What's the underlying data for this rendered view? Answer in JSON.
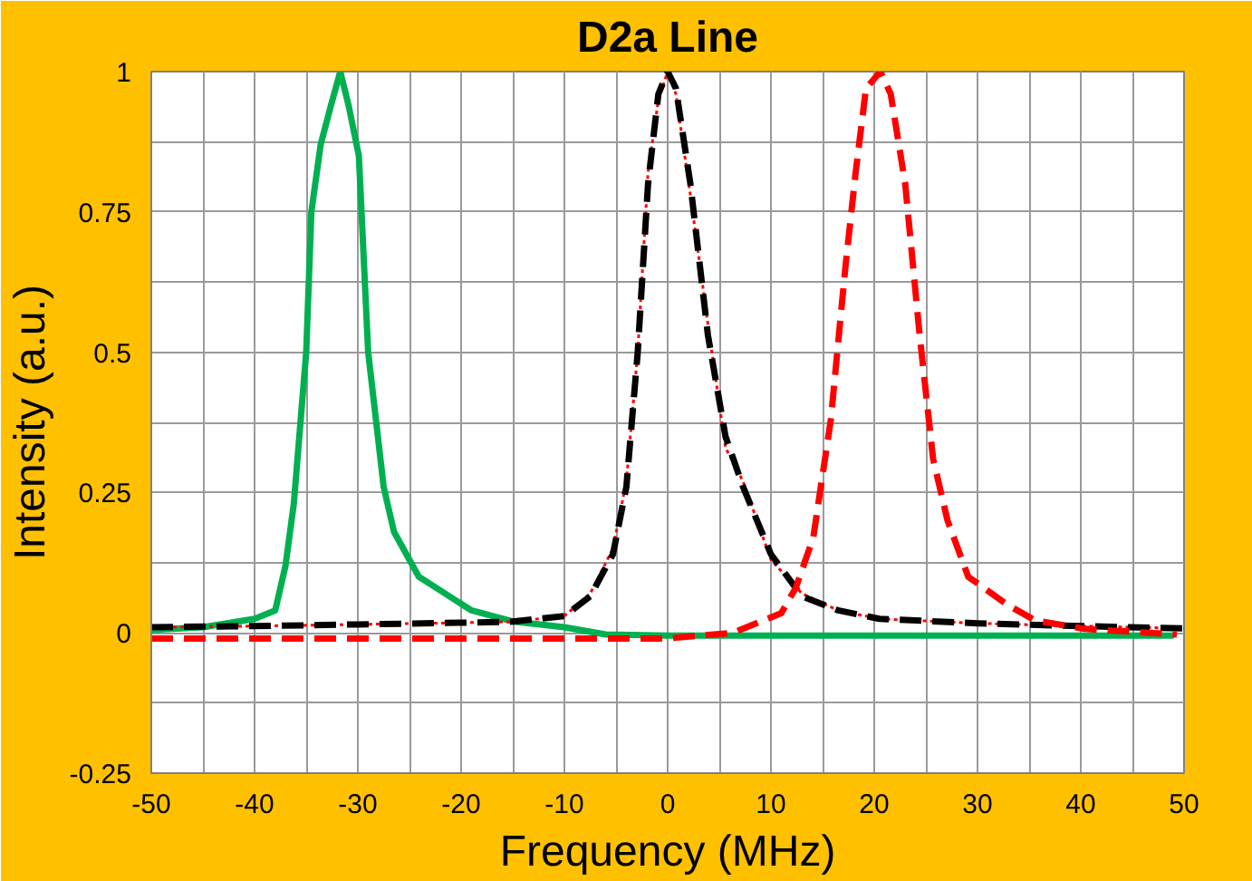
{
  "chart_data": {
    "type": "line",
    "title": "D2a Line",
    "xlabel": "Frequency (MHz)",
    "ylabel": "Intensity (a.u.)",
    "xlim": [
      -50,
      50
    ],
    "ylim": [
      -0.25,
      1
    ],
    "xticks": [
      -50,
      {
        "value": -45,
        "label": null
      },
      -40,
      {
        "value": -35,
        "label": null
      },
      -30,
      {
        "value": -25,
        "label": null
      },
      -20,
      {
        "value": -15,
        "label": null
      },
      -10,
      {
        "value": -5,
        "label": null
      },
      0,
      {
        "value": 5,
        "label": null
      },
      10,
      {
        "value": 15,
        "label": null
      },
      20,
      {
        "value": 25,
        "label": null
      },
      30,
      {
        "value": 35,
        "label": null
      },
      40,
      {
        "value": 45,
        "label": null
      },
      50
    ],
    "yticks": [
      -0.25,
      {
        "value": -0.125,
        "label": null
      },
      0,
      {
        "value": 0.125,
        "label": null
      },
      0.25,
      {
        "value": 0.375,
        "label": null
      },
      0.5,
      {
        "value": 0.625,
        "label": null
      },
      0.75,
      {
        "value": 0.875,
        "label": null
      },
      1
    ],
    "grid": true,
    "series": [
      {
        "color": "#00b050",
        "line_style": "solid",
        "x": [
          -50,
          -45,
          -40,
          -38,
          -37,
          -36.2,
          -35,
          -34.5,
          -33.6,
          -32.6,
          -31.7,
          -30.9,
          -29.9,
          -29,
          -27.5,
          -26.5,
          -24.1,
          -22.4,
          -19,
          -14.9,
          -10,
          -6,
          0,
          10,
          20,
          30,
          40,
          49
        ],
        "values": [
          0.005,
          0.01,
          0.025,
          0.04,
          0.12,
          0.23,
          0.5,
          0.75,
          0.87,
          0.94,
          1.0,
          0.94,
          0.85,
          0.5,
          0.26,
          0.18,
          0.1,
          0.08,
          0.04,
          0.02,
          0.01,
          -0.003,
          -0.005,
          -0.005,
          -0.005,
          -0.005,
          -0.005,
          -0.005
        ]
      },
      {
        "color": "#ff0000",
        "line_style": "dotted",
        "x": [
          -50,
          -40,
          -30,
          -20,
          -15,
          -10,
          -7.5,
          -5.3,
          -4,
          -2.9,
          -1.9,
          -0.9,
          0,
          0.8,
          2.2,
          3.9,
          5.6,
          7.3,
          10,
          13,
          16.5,
          20.5,
          30,
          40,
          50
        ],
        "values": [
          0.01,
          0.012,
          0.015,
          0.018,
          0.02,
          0.03,
          0.07,
          0.15,
          0.27,
          0.5,
          0.82,
          0.95,
          1.0,
          0.96,
          0.78,
          0.55,
          0.33,
          0.27,
          0.13,
          0.07,
          0.04,
          0.025,
          0.017,
          0.012,
          0.008
        ]
      },
      {
        "color": "#000000",
        "line_style": "dashed",
        "x": [
          -50,
          -40,
          -30,
          -20,
          -15,
          -10,
          -7.5,
          -5.3,
          -4,
          -2.9,
          -1.9,
          -0.9,
          0,
          0.8,
          2.2,
          3.9,
          5.6,
          7.3,
          10,
          13,
          16.5,
          20.5,
          30,
          40,
          50
        ],
        "values": [
          0.01,
          0.012,
          0.015,
          0.018,
          0.02,
          0.03,
          0.065,
          0.14,
          0.26,
          0.5,
          0.8,
          0.96,
          1.0,
          0.97,
          0.8,
          0.53,
          0.35,
          0.26,
          0.14,
          0.065,
          0.04,
          0.025,
          0.017,
          0.012,
          0.008
        ]
      },
      {
        "color": "#ff0000",
        "line_style": "dashed",
        "x": [
          -50,
          -40,
          -30,
          -20,
          -10,
          0,
          6.3,
          11,
          12.4,
          14.1,
          15.8,
          17.2,
          18.2,
          19.2,
          20.6,
          21.6,
          23,
          24.4,
          25.7,
          27.1,
          29.1,
          32.9,
          35.6,
          40.4,
          49.3
        ],
        "values": [
          -0.01,
          -0.01,
          -0.01,
          -0.01,
          -0.01,
          -0.01,
          0.0,
          0.035,
          0.08,
          0.17,
          0.38,
          0.65,
          0.82,
          0.97,
          1.0,
          0.96,
          0.8,
          0.53,
          0.31,
          0.2,
          0.1,
          0.05,
          0.022,
          0.007,
          -0.003
        ]
      }
    ]
  }
}
